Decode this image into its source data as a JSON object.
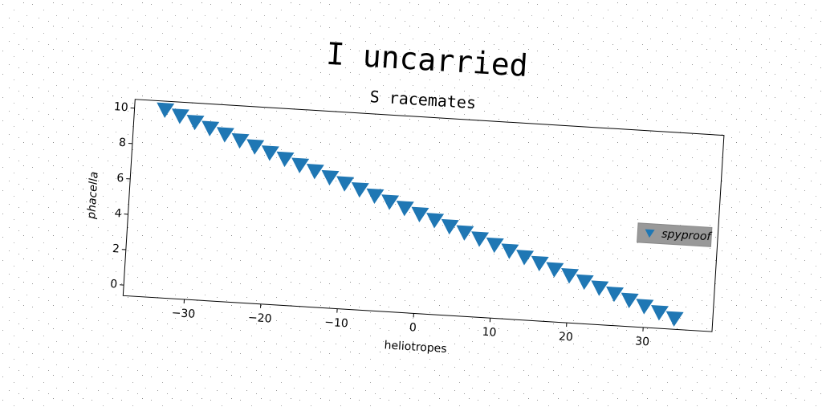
{
  "chart_data": {
    "type": "scatter",
    "title": "I uncarried",
    "subtitle": "S racemates",
    "xlabel": "heliotropes",
    "ylabel": "phacella",
    "series": [
      {
        "name": "spyproof",
        "color": "#1f77b4",
        "marker": "triangle-down",
        "x": [
          -34,
          -32,
          -30,
          -28,
          -26,
          -24,
          -22,
          -20,
          -18,
          -16,
          -14,
          -12,
          -10,
          -8,
          -6,
          -4,
          -2,
          0,
          2,
          4,
          6,
          8,
          10,
          12,
          14,
          16,
          18,
          20,
          22,
          24,
          26,
          28,
          30,
          32,
          34
        ],
        "values": [
          10,
          9.71,
          9.41,
          9.12,
          8.82,
          8.53,
          8.24,
          7.94,
          7.65,
          7.35,
          7.06,
          6.76,
          6.47,
          6.18,
          5.88,
          5.59,
          5.29,
          5.0,
          4.71,
          4.41,
          4.12,
          3.82,
          3.53,
          3.24,
          2.94,
          2.65,
          2.35,
          2.06,
          1.76,
          1.47,
          1.18,
          0.88,
          0.59,
          0.29,
          0
        ]
      }
    ],
    "xlim": [
      -38,
      39
    ],
    "ylim": [
      -0.6,
      10.5
    ],
    "xticks": [
      {
        "value": -30,
        "label": "−30"
      },
      {
        "value": -20,
        "label": "−20"
      },
      {
        "value": -10,
        "label": "−10"
      },
      0,
      10,
      20,
      30
    ],
    "yticks": [
      0,
      2,
      4,
      6,
      8,
      10
    ],
    "legend": "right"
  }
}
